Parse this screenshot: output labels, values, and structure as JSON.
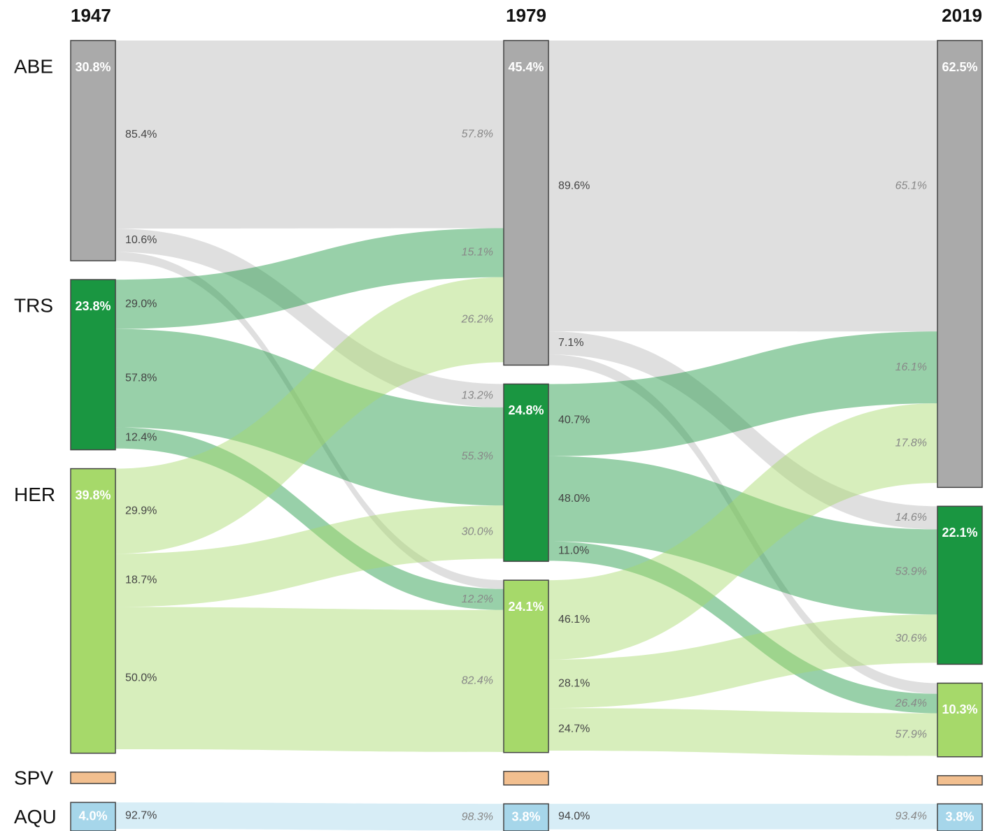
{
  "chart_data": {
    "type": "alluvial",
    "categories": [
      "ABE",
      "TRS",
      "HER",
      "SPV",
      "AQU"
    ],
    "colors": [
      "#aaaaaa",
      "#1a9641",
      "#a6d96a",
      "#f2bf8f",
      "#a6d6ea"
    ],
    "columns": [
      {
        "label": "1947",
        "values": [
          30.8,
          23.8,
          39.8,
          1.6,
          4.0
        ],
        "value_labels": [
          "30.8%",
          "23.8%",
          "39.8%",
          null,
          "4.0%"
        ]
      },
      {
        "label": "1979",
        "values": [
          45.4,
          24.8,
          24.1,
          1.9,
          3.8
        ],
        "value_labels": [
          "45.4%",
          "24.8%",
          "24.1%",
          null,
          "3.8%"
        ]
      },
      {
        "label": "2019",
        "values": [
          62.5,
          22.1,
          10.3,
          1.3,
          3.8
        ],
        "value_labels": [
          "62.5%",
          "22.1%",
          "10.3%",
          null,
          "3.8%"
        ]
      }
    ],
    "links": [
      {
        "from": "1947",
        "to": "1979",
        "flows": [
          {
            "source": "ABE",
            "target": "ABE",
            "values": [
              85.4,
              57.8
            ],
            "value_labels": [
              "85.4%",
              "57.8%"
            ]
          },
          {
            "source": "ABE",
            "target": "TRS",
            "values": [
              10.6,
              13.2
            ],
            "value_labels": [
              "10.6%",
              "13.2%"
            ]
          },
          {
            "source": "ABE",
            "target": "HER",
            "values": [
              4.0,
              5.1
            ],
            "value_labels": [
              null,
              null
            ]
          },
          {
            "source": "TRS",
            "target": "ABE",
            "values": [
              29.0,
              15.1
            ],
            "value_labels": [
              "29.0%",
              "15.1%"
            ]
          },
          {
            "source": "TRS",
            "target": "TRS",
            "values": [
              57.8,
              55.3
            ],
            "value_labels": [
              "57.8%",
              "55.3%"
            ]
          },
          {
            "source": "TRS",
            "target": "HER",
            "values": [
              12.4,
              12.2
            ],
            "value_labels": [
              "12.4%",
              "12.2%"
            ]
          },
          {
            "source": "HER",
            "target": "ABE",
            "values": [
              29.9,
              26.2
            ],
            "value_labels": [
              "29.9%",
              "26.2%"
            ]
          },
          {
            "source": "HER",
            "target": "TRS",
            "values": [
              18.7,
              30.0
            ],
            "value_labels": [
              "18.7%",
              "30.0%"
            ]
          },
          {
            "source": "HER",
            "target": "HER",
            "values": [
              50.0,
              82.4
            ],
            "value_labels": [
              "50.0%",
              "82.4%"
            ]
          },
          {
            "source": "AQU",
            "target": "AQU",
            "values": [
              92.7,
              98.3
            ],
            "value_labels": [
              "92.7%",
              "98.3%"
            ]
          }
        ]
      },
      {
        "from": "1979",
        "to": "2019",
        "flows": [
          {
            "source": "ABE",
            "target": "ABE",
            "values": [
              89.6,
              65.1
            ],
            "value_labels": [
              "89.6%",
              "65.1%"
            ]
          },
          {
            "source": "ABE",
            "target": "TRS",
            "values": [
              7.1,
              14.6
            ],
            "value_labels": [
              "7.1%",
              "14.6%"
            ]
          },
          {
            "source": "ABE",
            "target": "HER",
            "values": [
              3.3,
              14.5
            ],
            "value_labels": [
              null,
              null
            ]
          },
          {
            "source": "TRS",
            "target": "ABE",
            "values": [
              40.7,
              16.1
            ],
            "value_labels": [
              "40.7%",
              "16.1%"
            ]
          },
          {
            "source": "TRS",
            "target": "TRS",
            "values": [
              48.0,
              53.9
            ],
            "value_labels": [
              "48.0%",
              "53.9%"
            ]
          },
          {
            "source": "TRS",
            "target": "HER",
            "values": [
              11.0,
              26.4
            ],
            "value_labels": [
              "11.0%",
              "26.4%"
            ]
          },
          {
            "source": "HER",
            "target": "ABE",
            "values": [
              46.1,
              17.8
            ],
            "value_labels": [
              "46.1%",
              "17.8%"
            ]
          },
          {
            "source": "HER",
            "target": "TRS",
            "values": [
              28.1,
              30.6
            ],
            "value_labels": [
              "28.1%",
              "30.6%"
            ]
          },
          {
            "source": "HER",
            "target": "HER",
            "values": [
              24.7,
              57.9
            ],
            "value_labels": [
              "24.7%",
              "57.9%"
            ]
          },
          {
            "source": "AQU",
            "target": "AQU",
            "values": [
              94.0,
              93.4
            ],
            "value_labels": [
              "94.0%",
              "93.4%"
            ]
          }
        ]
      }
    ]
  }
}
